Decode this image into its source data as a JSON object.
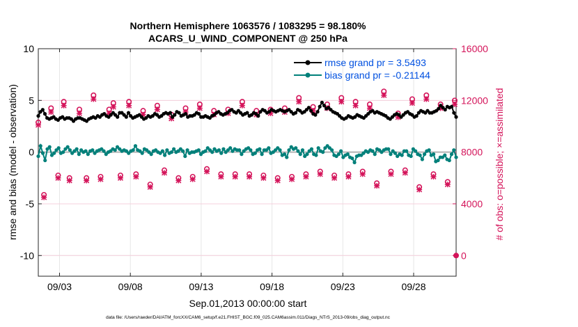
{
  "chart_data": {
    "type": "line",
    "title_line1": "Northern Hemisphere 1063576 / 1083295 = 98.180%",
    "title_line2": "ACARS_U_WIND_COMPONENT @ 250 hPa",
    "xlabel": "Sep.01,2013 00:00:00 start",
    "ylabel_left": "rmse and bias (model - observation)",
    "ylabel_right": "# of obs: o=possible; ×=assimilated",
    "xlim": [
      1.5,
      31.0
    ],
    "ylim_left": [
      -12,
      10
    ],
    "ylim_right": [
      -1600,
      16000
    ],
    "x_ticks": [
      3,
      8,
      13,
      18,
      23,
      28
    ],
    "x_tick_labels": [
      "09/03",
      "09/08",
      "09/13",
      "09/18",
      "09/23",
      "09/28"
    ],
    "y_left_ticks": [
      10,
      5,
      0,
      -5,
      -10
    ],
    "y_left_tick_labels": [
      "10",
      "5",
      "0",
      "-5",
      "-10"
    ],
    "y_right_ticks": [
      16000,
      12000,
      8000,
      4000,
      0
    ],
    "y_right_tick_labels": [
      "16000",
      "12000",
      "8000",
      "4000",
      "0"
    ],
    "zero_line": 0,
    "legend": {
      "position": "top-right",
      "entries": [
        {
          "label": "rmse grand pr = 3.5493",
          "color": "#000000"
        },
        {
          "label": "bias grand pr = -0.21144",
          "color": "#00807a"
        }
      ]
    },
    "series": [
      {
        "name": "rmse",
        "axis": "left",
        "color": "#000000",
        "values": [
          3.5,
          3.9,
          4.1,
          3.7,
          3.3,
          3.2,
          3.3,
          3.4,
          3.2,
          3.1,
          3.3,
          3.4,
          3.2,
          3.3,
          3.3,
          3.2,
          3.0,
          3.2,
          3.3,
          3.3,
          3.2,
          3.1,
          3.0,
          3.2,
          3.3,
          3.4,
          3.3,
          3.5,
          3.4,
          3.6,
          3.7,
          3.5,
          3.4,
          3.6,
          3.8,
          3.6,
          3.4,
          3.8,
          3.8,
          3.6,
          3.4,
          3.8,
          3.5,
          3.3,
          3.4,
          3.5,
          3.6,
          3.4,
          3.2,
          3.3,
          3.5,
          3.4,
          3.5,
          3.7,
          3.6,
          3.4,
          3.5,
          3.7,
          3.8,
          3.7,
          3.8,
          3.4,
          3.6,
          3.9,
          3.8,
          3.5,
          3.6,
          3.7,
          3.4,
          3.5,
          3.5,
          3.6,
          3.8,
          3.7,
          3.4,
          3.4,
          3.5,
          3.4,
          3.3,
          3.5,
          3.6,
          3.8,
          3.9,
          3.7,
          3.6,
          3.7,
          3.8,
          4.0,
          4.1,
          3.9,
          3.8,
          4.0,
          3.8,
          3.6,
          3.7,
          3.8,
          3.5,
          3.6,
          3.8,
          3.7,
          3.5,
          3.9,
          4.1,
          4.0,
          3.8,
          3.9,
          4.1,
          4.0,
          3.9,
          4.0,
          4.1,
          4.0,
          3.9,
          4.0,
          4.1,
          3.9,
          3.7,
          3.8,
          4.1,
          4.0,
          3.8,
          3.9,
          4.1,
          4.3,
          4.0,
          3.7,
          3.6,
          3.9,
          4.4,
          4.8,
          4.5,
          4.2,
          4.3,
          4.1,
          3.9,
          3.8,
          3.7,
          3.5,
          3.3,
          3.2,
          3.3,
          3.5,
          3.4,
          3.3,
          3.4,
          3.6,
          3.5,
          3.4,
          3.3,
          3.5,
          3.7,
          3.9,
          4.0,
          3.8,
          3.9,
          3.8,
          3.7,
          3.6,
          3.5,
          3.3,
          3.2,
          3.4,
          3.6,
          3.7,
          3.6,
          3.4,
          3.6,
          3.8,
          3.9,
          3.7,
          3.6,
          3.4,
          3.5,
          3.8,
          4.0,
          3.9,
          3.8,
          4.0,
          3.8,
          3.8,
          3.9,
          4.0,
          4.2,
          4.5,
          4.3,
          4.1,
          4.4,
          4.3,
          4.4,
          3.8,
          3.4
        ]
      },
      {
        "name": "bias",
        "axis": "left",
        "color": "#00807a",
        "values": [
          -0.4,
          0.6,
          -0.1,
          -0.8,
          0.3,
          0.5,
          -0.3,
          -0.1,
          0.2,
          0.4,
          -0.1,
          0.0,
          0.3,
          0.5,
          0.2,
          -0.1,
          0.1,
          0.3,
          -0.2,
          0.2,
          0.0,
          0.1,
          -0.2,
          0.1,
          0.2,
          -0.1,
          0.1,
          0.2,
          0.3,
          0.1,
          -0.2,
          0.0,
          0.1,
          0.3,
          0.2,
          0.5,
          0.3,
          0.1,
          0.2,
          0.1,
          -0.1,
          0.1,
          0.2,
          0.6,
          0.2,
          0.1,
          -0.1,
          0.3,
          0.2,
          0.0,
          -0.2,
          0.1,
          0.2,
          0.0,
          -0.1,
          0.1,
          -0.3,
          0.2,
          -0.1,
          0.0,
          0.3,
          0.0,
          0.1,
          0.3,
          0.1,
          -0.4,
          0.2,
          -0.1,
          0.0,
          0.0,
          0.1,
          0.2,
          -0.2,
          0.0,
          0.1,
          0.4,
          0.2,
          0.0,
          0.3,
          0.1,
          0.2,
          -0.1,
          0.3,
          0.0,
          0.2,
          0.4,
          0.1,
          0.3,
          0.2,
          0.2,
          -0.2,
          0.1,
          0.3,
          0.4,
          0.2,
          -0.2,
          -0.1,
          0.2,
          0.3,
          -0.2,
          0.2,
          0.2,
          0.4,
          -0.1,
          0.0,
          0.2,
          0.4,
          0.2,
          -0.3,
          -0.2,
          -0.5,
          0.2,
          0.5,
          0.3,
          0.4,
          0.1,
          -0.2,
          0.2,
          -0.4,
          -0.2,
          0.1,
          0.3,
          -0.2,
          -0.3,
          0.4,
          0.1,
          0.0,
          0.4,
          0.6,
          0.4,
          0.2,
          -0.3,
          -0.4,
          -0.2,
          0.1,
          -0.5,
          -0.3,
          -0.2,
          -0.5,
          -0.6,
          -1.0,
          -0.4,
          -0.3,
          -0.3,
          -0.1,
          0.1,
          0.0,
          0.2,
          0.1,
          -0.2,
          0.3,
          0.2,
          0.0,
          0.2,
          0.3,
          0.3,
          -0.2,
          0.1,
          -0.1,
          -0.4,
          -0.2,
          -0.3,
          0.1,
          0.1,
          -0.3,
          -0.4,
          0.3,
          0.1,
          -0.2,
          -0.3,
          -0.7,
          -0.2,
          0.1,
          0.2,
          -0.3,
          -0.2,
          -0.9,
          -0.8,
          -0.5,
          -0.5,
          -0.3,
          -0.7,
          -0.8,
          -0.2,
          0.2,
          -0.5
        ]
      },
      {
        "name": "possible",
        "axis": "right",
        "color": "#d4145a",
        "marker": "circle",
        "x": [
          1.5,
          1.9,
          2.4,
          2.9,
          3.3,
          3.7,
          4.4,
          4.9,
          5.4,
          5.9,
          6.5,
          6.8,
          7.3,
          7.9,
          8.4,
          8.9,
          9.4,
          9.9,
          10.4,
          10.9,
          11.4,
          11.9,
          12.4,
          12.9,
          13.4,
          13.9,
          14.4,
          14.9,
          15.4,
          15.9,
          16.4,
          16.9,
          17.4,
          17.9,
          18.4,
          18.9,
          19.4,
          19.9,
          20.4,
          20.9,
          21.4,
          21.9,
          22.4,
          22.9,
          23.4,
          23.9,
          24.4,
          24.9,
          25.4,
          25.9,
          26.4,
          26.9,
          27.4,
          27.9,
          28.4,
          28.9,
          29.4,
          29.9,
          30.4,
          30.9
        ],
        "y": [
          10300,
          4700,
          11400,
          6200,
          11900,
          6000,
          11300,
          6000,
          12400,
          6100,
          11300,
          11800,
          6200,
          11900,
          6300,
          11200,
          5500,
          11600,
          6600,
          10900,
          6000,
          11400,
          6100,
          11700,
          6700,
          11200,
          6300,
          11300,
          6300,
          11900,
          6300,
          11200,
          6200,
          11300,
          6000,
          11400,
          6100,
          12200,
          6300,
          11500,
          6500,
          11700,
          6200,
          12200,
          6300,
          11900,
          6500,
          11700,
          5600,
          12700,
          6500,
          11000,
          6600,
          12100,
          5300,
          12400,
          6300,
          11700,
          5700,
          12000
        ]
      },
      {
        "name": "assimilated",
        "axis": "right",
        "color": "#d4145a",
        "marker": "x",
        "x": [
          1.5,
          1.9,
          2.4,
          2.9,
          3.3,
          3.7,
          4.4,
          4.9,
          5.4,
          5.9,
          6.5,
          6.8,
          7.3,
          7.9,
          8.4,
          8.9,
          9.4,
          9.9,
          10.4,
          10.9,
          11.4,
          11.9,
          12.4,
          12.9,
          13.4,
          13.9,
          14.4,
          14.9,
          15.4,
          15.9,
          16.4,
          16.9,
          17.4,
          17.9,
          18.4,
          18.9,
          19.4,
          19.9,
          20.4,
          20.9,
          21.4,
          21.9,
          22.4,
          22.9,
          23.4,
          23.9,
          24.4,
          24.9,
          25.4,
          25.9,
          26.4,
          26.9,
          27.4,
          27.9,
          28.4,
          28.9,
          29.4,
          29.9,
          30.4,
          30.9
        ],
        "y": [
          10100,
          4500,
          11100,
          6000,
          11600,
          5800,
          11000,
          5800,
          12100,
          5900,
          11000,
          11500,
          6000,
          11600,
          6100,
          10900,
          5300,
          11300,
          6400,
          10600,
          5800,
          11100,
          5900,
          11400,
          6500,
          10900,
          6100,
          11000,
          6100,
          11600,
          6100,
          10900,
          6000,
          11000,
          5800,
          11100,
          5900,
          11900,
          6100,
          11200,
          6300,
          11400,
          6000,
          11900,
          6100,
          11600,
          6300,
          11400,
          5400,
          12400,
          6300,
          10700,
          6400,
          11800,
          5100,
          12100,
          6100,
          11400,
          5500,
          11700
        ]
      }
    ],
    "right_axis_extra_point": {
      "x": 31.0,
      "y": 0,
      "marker": "circle"
    }
  },
  "footer": {
    "data_file": "data file: /Users/raeder/DAI/ATM_forcXX/CAM6_setup/f.e21.FHIST_BGC.f09_025.CAM6assim.011/Diags_NTrS_2013-09/obs_diag_output.nc"
  },
  "colors": {
    "rmse": "#000000",
    "bias": "#00807a",
    "obs": "#d4145a",
    "legend_text": "#0050e0",
    "grid": "#e6e6e6",
    "zero_line": "#b3b3b3"
  }
}
